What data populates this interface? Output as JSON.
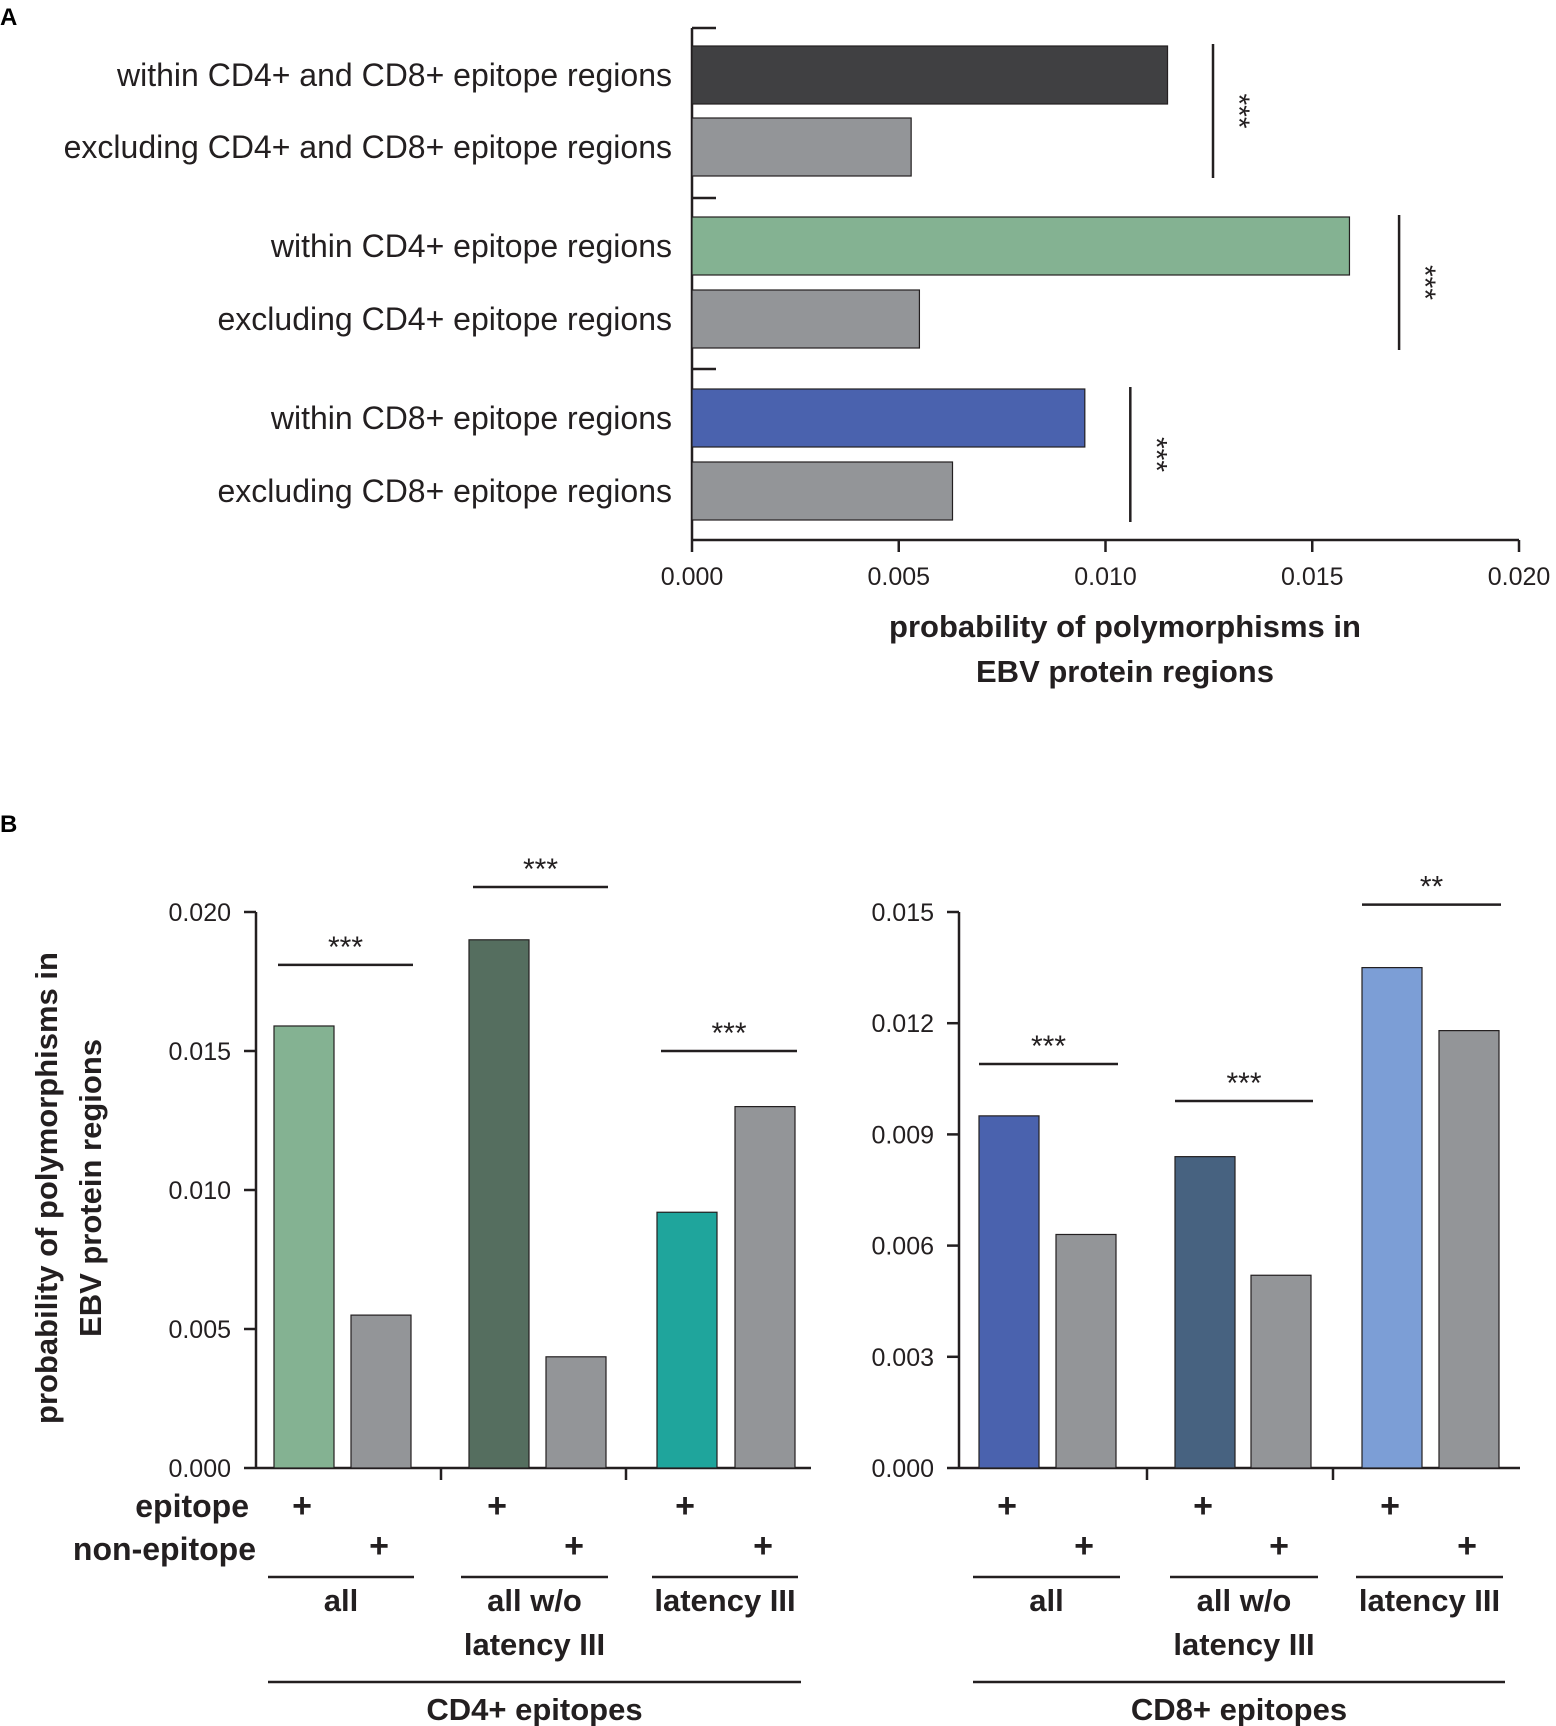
{
  "chart_data": [
    {
      "panel": "A",
      "type": "bar",
      "orientation": "horizontal",
      "xlabel_lines": [
        "probability of polymorphisms in",
        "EBV protein regions"
      ],
      "xlim": [
        0,
        0.02
      ],
      "xticks": [
        0,
        0.005,
        0.01,
        0.015,
        0.02
      ],
      "xtick_labels": [
        "0.000",
        "0.005",
        "0.010",
        "0.015",
        "0.020"
      ],
      "categories": [
        "within CD4+ and CD8+ epitope regions",
        "excluding CD4+ and CD8+ epitope regions",
        "within CD4+ epitope regions",
        "excluding CD4+ epitope regions",
        "within CD8+ epitope regions",
        "excluding CD8+ epitope regions"
      ],
      "values": [
        0.0115,
        0.0053,
        0.0159,
        0.0055,
        0.0095,
        0.0063
      ],
      "colors": [
        "#404042",
        "#939598",
        "#84b292",
        "#939598",
        "#4a62ae",
        "#939598"
      ],
      "significance": [
        {
          "pair": [
            0,
            1
          ],
          "label": "***",
          "at": 0.0126
        },
        {
          "pair": [
            2,
            3
          ],
          "label": "***",
          "at": 0.0171
        },
        {
          "pair": [
            4,
            5
          ],
          "label": "***",
          "at": 0.0106
        }
      ]
    },
    {
      "panel": "B",
      "subchart": "CD4+",
      "type": "bar",
      "ylabel_lines": [
        "probability of polymorphisms in",
        "EBV protein regions"
      ],
      "ylim": [
        0,
        0.02
      ],
      "yticks": [
        0,
        0.005,
        0.01,
        0.015,
        0.02
      ],
      "ytick_labels": [
        "0.000",
        "0.005",
        "0.010",
        "0.015",
        "0.020"
      ],
      "row_labels": [
        "epitope",
        "non-epitope"
      ],
      "plus_label": "+",
      "group_title": "CD4+ epitopes",
      "groups": [
        {
          "label_lines": [
            "all"
          ],
          "epitope": 0.0159,
          "non_epitope": 0.0055,
          "epitope_color": "#84b292",
          "non_epitope_color": "#939598",
          "sig": "***",
          "sig_at": 0.0181
        },
        {
          "label_lines": [
            "all w/o",
            "latency III"
          ],
          "epitope": 0.019,
          "non_epitope": 0.004,
          "epitope_color": "#556e5f",
          "non_epitope_color": "#939598",
          "sig": "***",
          "sig_at": 0.0209
        },
        {
          "label_lines": [
            "latency III"
          ],
          "epitope": 0.0092,
          "non_epitope": 0.013,
          "epitope_color": "#1fa59c",
          "non_epitope_color": "#939598",
          "sig": "***",
          "sig_at": 0.015
        }
      ]
    },
    {
      "panel": "B",
      "subchart": "CD8+",
      "type": "bar",
      "ylim": [
        0,
        0.015
      ],
      "yticks": [
        0,
        0.003,
        0.006,
        0.009,
        0.012,
        0.015
      ],
      "ytick_labels": [
        "0.000",
        "0.003",
        "0.006",
        "0.009",
        "0.012",
        "0.015"
      ],
      "plus_label": "+",
      "group_title": "CD8+ epitopes",
      "groups": [
        {
          "label_lines": [
            "all"
          ],
          "epitope": 0.0095,
          "non_epitope": 0.0063,
          "epitope_color": "#4a62ae",
          "non_epitope_color": "#939598",
          "sig": "***",
          "sig_at": 0.0109
        },
        {
          "label_lines": [
            "all w/o",
            "latency III"
          ],
          "epitope": 0.0084,
          "non_epitope": 0.0052,
          "epitope_color": "#476280",
          "non_epitope_color": "#939598",
          "sig": "***",
          "sig_at": 0.0099
        },
        {
          "label_lines": [
            "latency III"
          ],
          "epitope": 0.0135,
          "non_epitope": 0.0118,
          "epitope_color": "#7c9ed6",
          "non_epitope_color": "#939598",
          "sig": "**",
          "sig_at": 0.0152
        }
      ]
    }
  ],
  "panel_labels": {
    "a": "A",
    "b": "B"
  }
}
